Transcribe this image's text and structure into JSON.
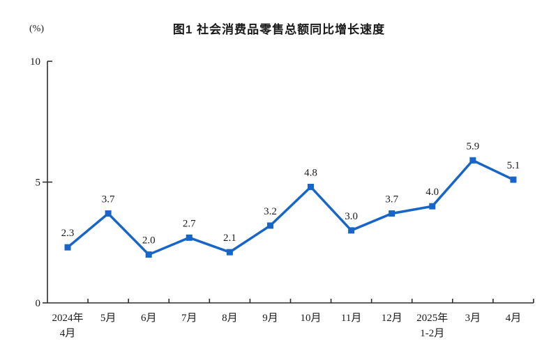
{
  "figure": {
    "background": "#ffffff"
  },
  "chart_data": {
    "type": "line",
    "title": "图1 社会消费品零售总额同比增长速度",
    "unit_label": "(%)",
    "categories": [
      [
        "2024年",
        "4月"
      ],
      [
        "5月"
      ],
      [
        "6月"
      ],
      [
        "7月"
      ],
      [
        "8月"
      ],
      [
        "9月"
      ],
      [
        "10月"
      ],
      [
        "11月"
      ],
      [
        "12月"
      ],
      [
        "2025年",
        "1-2月"
      ],
      [
        "3月"
      ],
      [
        "4月"
      ]
    ],
    "values": [
      2.3,
      3.7,
      2.0,
      2.7,
      2.1,
      3.2,
      4.8,
      3.0,
      3.7,
      4.0,
      5.9,
      5.1
    ],
    "data_labels": [
      "2.3",
      "3.7",
      "2.0",
      "2.7",
      "2.1",
      "3.2",
      "4.8",
      "3.0",
      "3.7",
      "4.0",
      "5.9",
      "5.1"
    ],
    "ylim": [
      0,
      10
    ],
    "yticks": [
      0,
      5,
      10
    ],
    "ytick_labels": [
      "0",
      "5",
      "10"
    ],
    "grid": false,
    "legend": "none",
    "marker": "square",
    "line_color": "#1765c8",
    "axis_color": "#2d2d2d",
    "label_color": "#1a1a1a"
  }
}
